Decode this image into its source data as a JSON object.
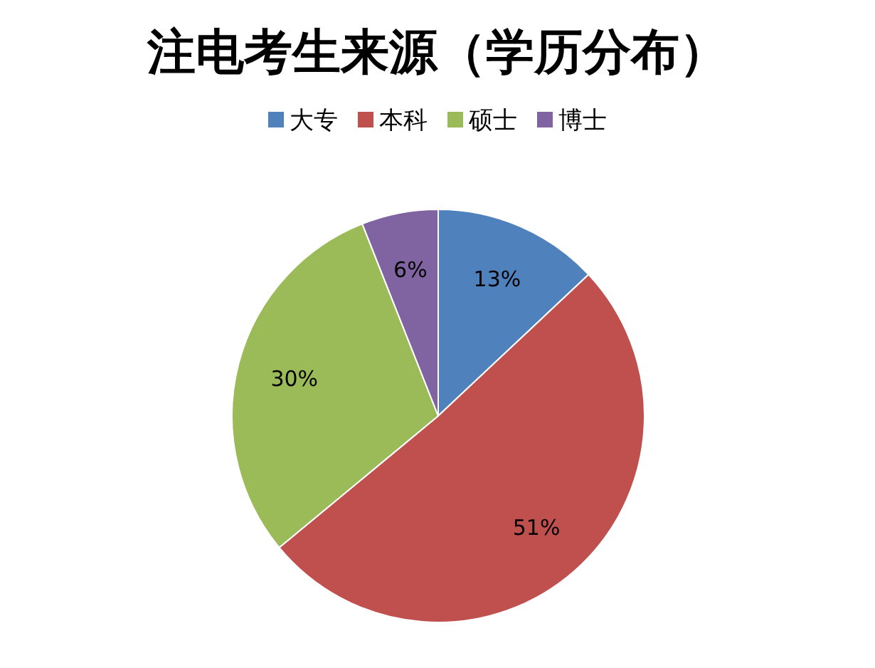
{
  "chart_data": {
    "type": "pie",
    "title": "注电考生来源（学历分布）",
    "categories": [
      "大专",
      "本科",
      "硕士",
      "博士"
    ],
    "values": [
      13,
      51,
      30,
      6
    ],
    "colors": [
      "#4f81bd",
      "#c0504d",
      "#9bbb59",
      "#8064a2"
    ],
    "value_labels": [
      "13%",
      "51%",
      "30%",
      "6%"
    ],
    "legend": "top"
  }
}
